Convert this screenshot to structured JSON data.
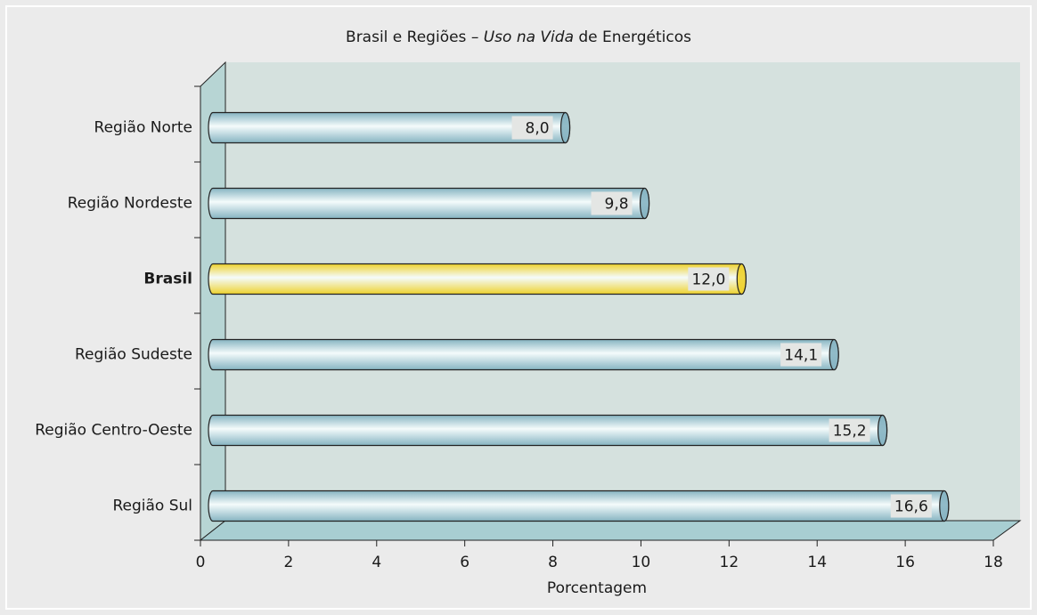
{
  "chart_data": {
    "type": "bar",
    "orientation": "horizontal",
    "title_parts": [
      "Brasil e Regiões – ",
      "Uso na Vida",
      " de Energéticos"
    ],
    "categories": [
      "Região Norte",
      "Região Nordeste",
      "Brasil",
      "Região Sudeste",
      "Região Centro-Oeste",
      "Região Sul"
    ],
    "values": [
      8.0,
      9.8,
      12.0,
      14.1,
      15.2,
      16.6
    ],
    "value_labels": [
      "8,0",
      "9,8",
      "12,0",
      "14,1",
      "15,2",
      "16,6"
    ],
    "colors": [
      "#86b4c2",
      "#86b4c2",
      "#eed22e",
      "#86b4c2",
      "#86b4c2",
      "#86b4c2"
    ],
    "xlabel": "Porcentagem",
    "xlim": [
      0,
      18
    ],
    "xticks": [
      0,
      2,
      4,
      6,
      8,
      10,
      12,
      14,
      16,
      18
    ],
    "grid": false
  }
}
